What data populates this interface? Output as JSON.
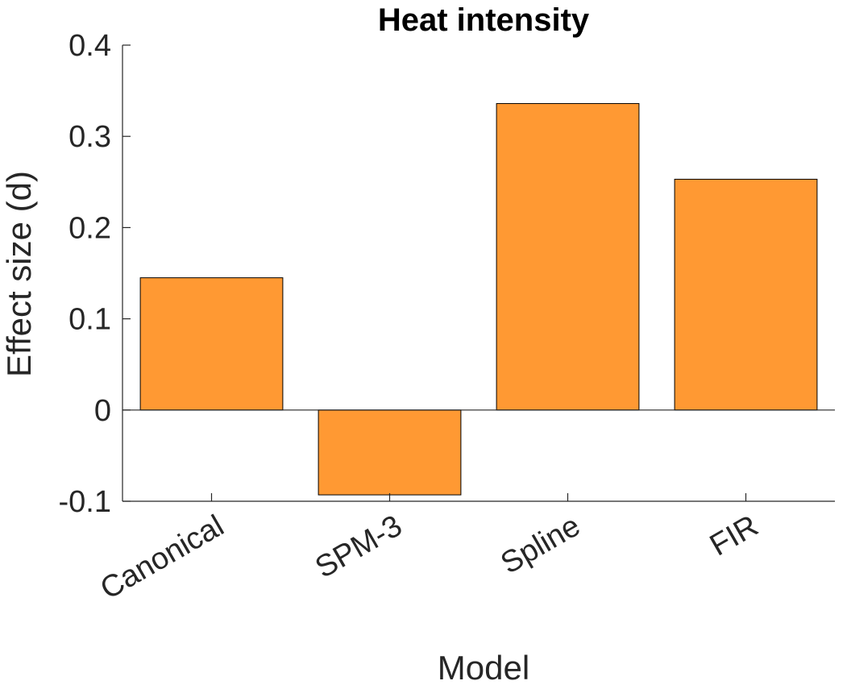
{
  "chart_data": {
    "type": "bar",
    "title": "Heat intensity",
    "xlabel": "Model",
    "ylabel": "Effect size (d)",
    "categories": [
      "Canonical",
      "SPM-3",
      "Spline",
      "FIR"
    ],
    "values": [
      0.145,
      -0.093,
      0.336,
      0.253
    ],
    "ylim": [
      -0.1,
      0.4
    ],
    "yticks": [
      -0.1,
      0,
      0.1,
      0.2,
      0.3,
      0.4
    ],
    "ytick_labels": [
      "-0.1",
      "0",
      "0.1",
      "0.2",
      "0.3",
      "0.4"
    ],
    "bar_color": "#FF9933",
    "grid": false,
    "x_tick_rotation_deg": -30
  }
}
